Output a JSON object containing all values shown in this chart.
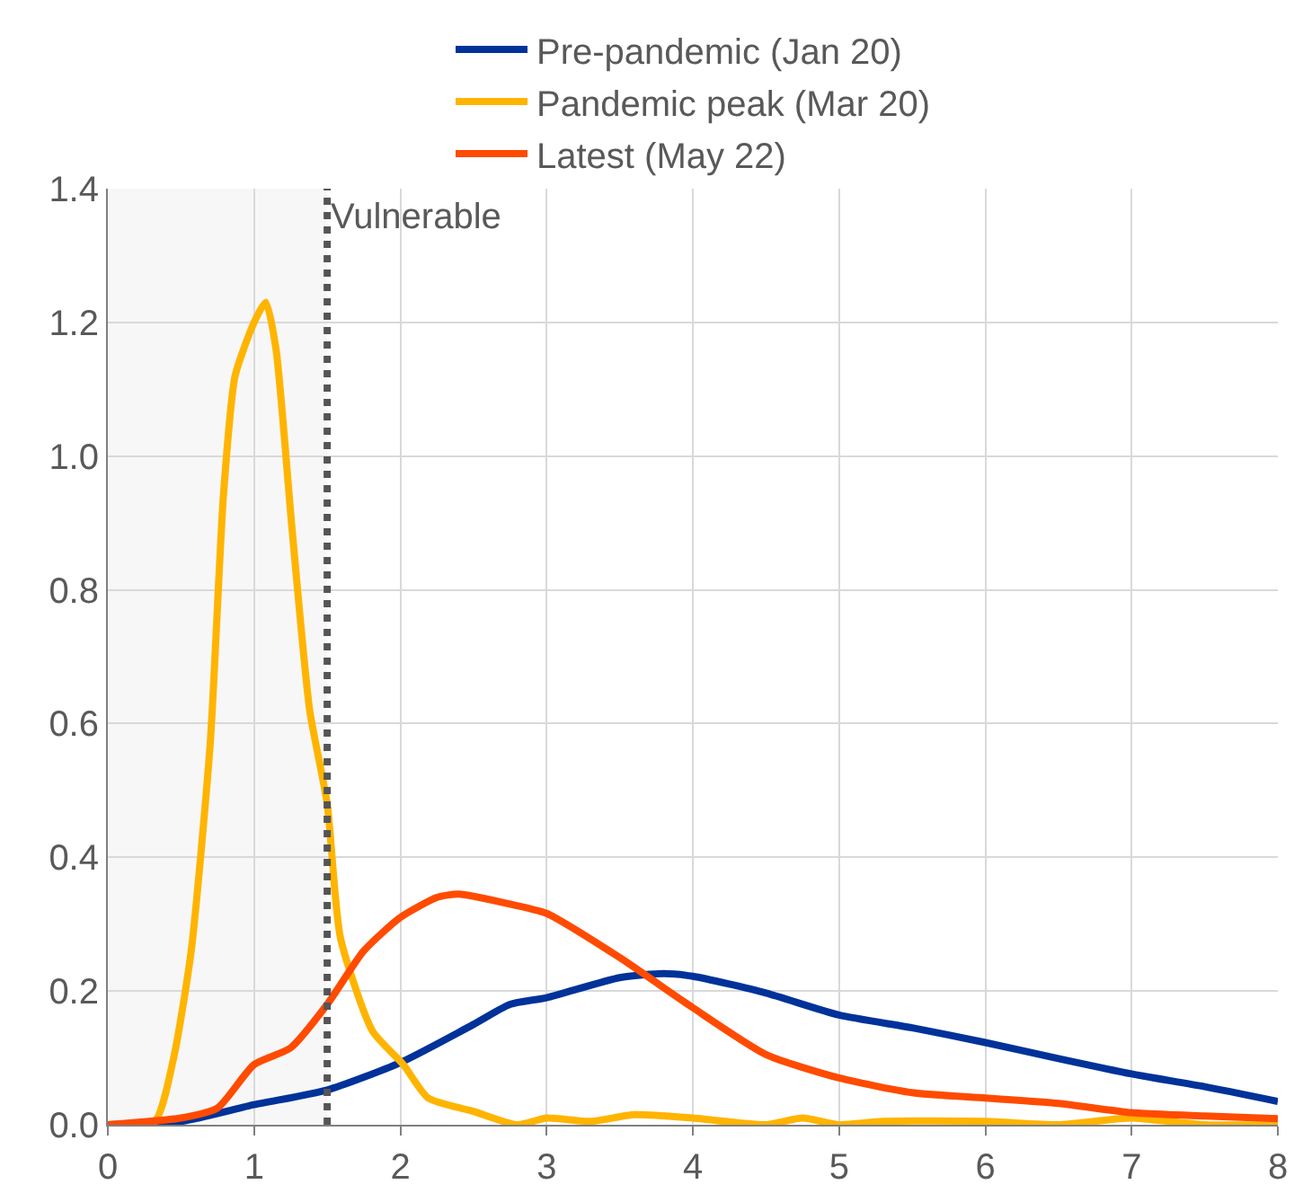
{
  "chart_data": {
    "type": "line",
    "series": [
      {
        "name": "Pre-pandemic (Jan 20)",
        "color": "#003299",
        "x": [
          0,
          0.5,
          1.0,
          1.5,
          2.0,
          2.5,
          2.75,
          3.0,
          3.5,
          3.8,
          4.0,
          4.5,
          5.0,
          5.5,
          6.0,
          6.5,
          7.0,
          7.5,
          8.0
        ],
        "values": [
          0,
          0.005,
          0.03,
          0.052,
          0.093,
          0.15,
          0.18,
          0.19,
          0.22,
          0.226,
          0.222,
          0.197,
          0.164,
          0.145,
          0.123,
          0.099,
          0.076,
          0.057,
          0.035
        ]
      },
      {
        "name": "Pandemic peak (Mar 20)",
        "color": "#ffb400",
        "x": [
          0,
          0.32,
          0.45,
          0.57,
          0.7,
          0.79,
          0.87,
          1.0,
          1.08,
          1.15,
          1.26,
          1.38,
          1.5,
          1.59,
          1.81,
          2.02,
          2.19,
          2.5,
          2.8,
          3.0,
          3.3,
          3.6,
          4.0,
          4.5,
          4.75,
          5.0,
          5.3,
          6.0,
          6.5,
          7.0,
          7.5,
          8.0
        ],
        "values": [
          0,
          0.005,
          0.1,
          0.26,
          0.57,
          0.94,
          1.12,
          1.2,
          1.23,
          1.16,
          0.89,
          0.62,
          0.48,
          0.28,
          0.14,
          0.09,
          0.04,
          0.02,
          0.0,
          0.01,
          0.005,
          0.015,
          0.01,
          0.0,
          0.01,
          0.0,
          0.005,
          0.005,
          0.0,
          0.01,
          0.0,
          0.0
        ]
      },
      {
        "name": "Latest (May 22)",
        "color": "#ff4b00",
        "x": [
          0,
          0.5,
          0.75,
          1.0,
          1.25,
          1.5,
          1.75,
          2.0,
          2.25,
          2.4,
          2.75,
          3.0,
          3.5,
          4.0,
          4.5,
          5.0,
          5.5,
          6.0,
          6.5,
          7.0,
          7.5,
          8.0
        ],
        "values": [
          0,
          0.01,
          0.025,
          0.09,
          0.115,
          0.18,
          0.26,
          0.31,
          0.34,
          0.345,
          0.33,
          0.316,
          0.25,
          0.175,
          0.105,
          0.07,
          0.048,
          0.04,
          0.032,
          0.018,
          0.013,
          0.009
        ]
      }
    ],
    "xlim": [
      0,
      8
    ],
    "xticks": [
      0,
      1,
      2,
      3,
      4,
      5,
      6,
      7,
      8
    ],
    "ylim": [
      0,
      1.4
    ],
    "yticks": [
      {
        "value": 0,
        "label": "0.0"
      },
      {
        "value": 0.2,
        "label": "0.2"
      },
      {
        "value": 0.4,
        "label": "0.4"
      },
      {
        "value": 0.6,
        "label": "0.6"
      },
      {
        "value": 0.8,
        "label": "0.8"
      },
      {
        "value": 1.0,
        "label": "1.0"
      },
      {
        "value": 1.2,
        "label": "1.2"
      },
      {
        "value": 1.4,
        "label": "1.4"
      }
    ],
    "ref_lines": [
      {
        "axis": "x",
        "value": 1.5,
        "label": "Vulnerable",
        "color": "#555555",
        "line_style": "dotted"
      }
    ],
    "bands": [
      {
        "axis": "x",
        "from": 0,
        "to": 1.5,
        "color": "#f7f7f7"
      }
    ],
    "grid": true,
    "legend": "top",
    "marker": "none",
    "line_style": "solid"
  }
}
